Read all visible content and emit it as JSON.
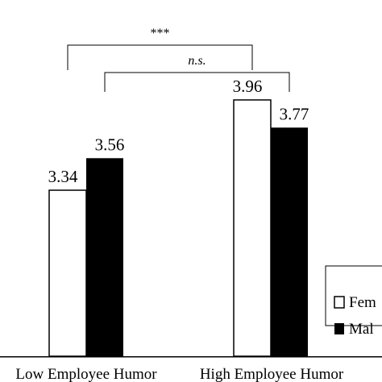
{
  "colors": {
    "background": "#ffffff",
    "axis": "#000000",
    "female_fill": "#ffffff",
    "female_stroke": "#000000",
    "male_fill": "#000000"
  },
  "chart_data": {
    "type": "bar",
    "categories": [
      "Low Employee Humor",
      "High Employee Humor"
    ],
    "series": [
      {
        "name": "Fem",
        "values": [
          3.34,
          3.96
        ]
      },
      {
        "name": "Mal",
        "values": [
          3.56,
          3.77
        ]
      }
    ],
    "value_labels": [
      [
        "3.34",
        "3.96"
      ],
      [
        "3.56",
        "3.77"
      ]
    ],
    "ylim": [
      2.2,
      4.2
    ],
    "legend_position": "right, partially cropped",
    "grid": false,
    "annotations": [
      {
        "text": "***",
        "between": [
          "Low Employee Humor / Fem",
          "High Employee Humor / Fem"
        ]
      },
      {
        "text": "n.s.",
        "between": [
          "Low Employee Humor / Mal",
          "High Employee Humor / Mal"
        ]
      }
    ]
  }
}
